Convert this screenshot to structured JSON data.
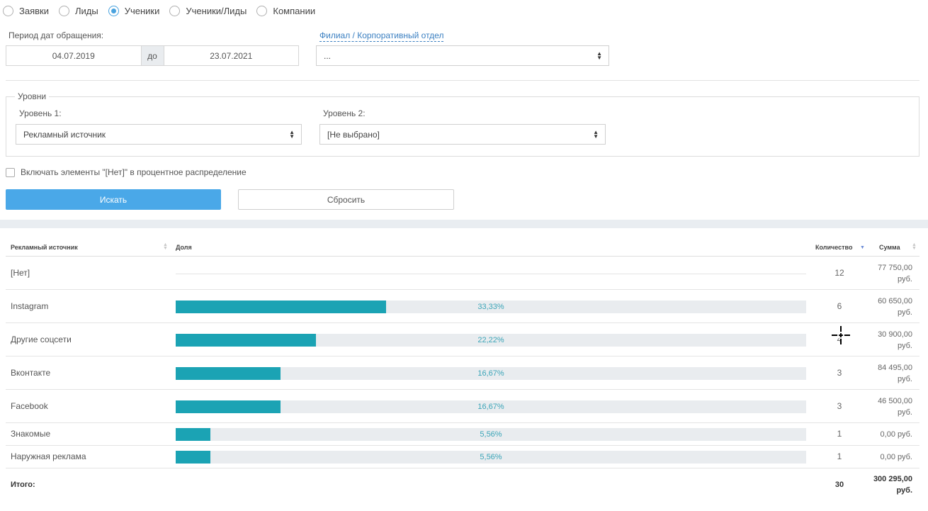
{
  "report_type": {
    "options": [
      "Заявки",
      "Лиды",
      "Ученики",
      "Ученики/Лиды",
      "Компании"
    ],
    "selected": "Ученики"
  },
  "filters": {
    "period_label": "Период дат обращения:",
    "date_from": "04.07.2019",
    "date_sep": "до",
    "date_to": "23.07.2021",
    "branch_label": "Филиал / Корпоративный отдел",
    "branch_value": "..."
  },
  "levels": {
    "legend": "Уровни",
    "level1_label": "Уровень 1:",
    "level1_value": "Рекламный источник",
    "level2_label": "Уровень 2:",
    "level2_value": "[Не выбрано]"
  },
  "include_none_label": "Включать элементы \"[Нет]\" в процентное распределение",
  "buttons": {
    "search": "Искать",
    "reset": "Сбросить"
  },
  "table": {
    "headers": {
      "source": "Рекламный источник",
      "share": "Доля",
      "count": "Количество",
      "sum": "Сумма"
    },
    "rows": [
      {
        "source": "[Нет]",
        "share_pct": null,
        "share_text": "",
        "count": "12",
        "sum_line1": "77 750,00",
        "sum_line2": "руб."
      },
      {
        "source": "Instagram",
        "share_pct": 33.33,
        "share_text": "33,33%",
        "count": "6",
        "sum_line1": "60 650,00",
        "sum_line2": "руб."
      },
      {
        "source": "Другие соцсети",
        "share_pct": 22.22,
        "share_text": "22,22%",
        "count": "4",
        "sum_line1": "30 900,00",
        "sum_line2": "руб."
      },
      {
        "source": "Вконтакте",
        "share_pct": 16.67,
        "share_text": "16,67%",
        "count": "3",
        "sum_line1": "84 495,00",
        "sum_line2": "руб."
      },
      {
        "source": "Facebook",
        "share_pct": 16.67,
        "share_text": "16,67%",
        "count": "3",
        "sum_line1": "46 500,00",
        "sum_line2": "руб."
      },
      {
        "source": "Знакомые",
        "share_pct": 5.56,
        "share_text": "5,56%",
        "count": "1",
        "sum_line1": "0,00 руб.",
        "sum_line2": ""
      },
      {
        "source": "Наружная реклама",
        "share_pct": 5.56,
        "share_text": "5,56%",
        "count": "1",
        "sum_line1": "0,00 руб.",
        "sum_line2": ""
      }
    ],
    "total": {
      "label": "Итого:",
      "count": "30",
      "sum_line1": "300 295,00",
      "sum_line2": "руб."
    }
  },
  "colors": {
    "accent": "#4aa8e8",
    "bar_fill": "#1ba3b4",
    "bar_track": "#e9ecef",
    "bar_text": "#3ba5b8"
  }
}
